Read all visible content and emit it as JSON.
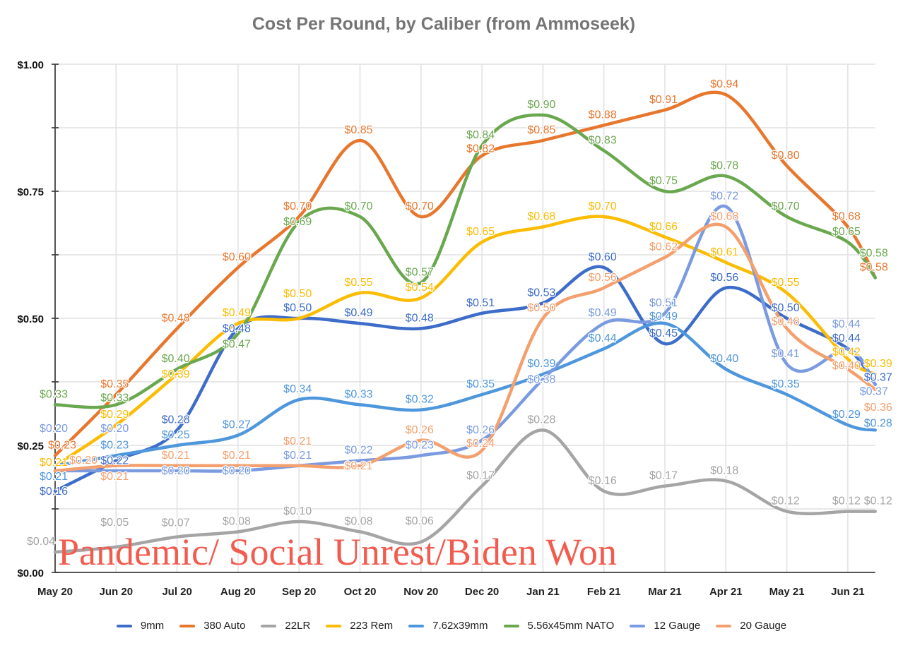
{
  "chart_data": {
    "type": "line",
    "title": "Cost Per Round, by Caliber (from Ammoseek)",
    "xlabel": "",
    "ylabel": "",
    "annotation": "Pandemic/ Social Unrest/Biden Won",
    "categories": [
      "May 20",
      "Jun 20",
      "Jul 20",
      "Aug 20",
      "Sep 20",
      "Oct 20",
      "Nov 20",
      "Dec 20",
      "Jan 21",
      "Feb 21",
      "Mar 21",
      "Apr 21",
      "May 21",
      "Jun 21"
    ],
    "x": [
      0,
      1,
      2,
      3,
      4,
      5,
      6,
      7,
      8,
      9,
      10,
      11,
      12,
      13,
      13.45
    ],
    "ylim": [
      0,
      1.0
    ],
    "yticks": [
      0,
      0.25,
      0.5,
      0.75,
      1.0
    ],
    "ytick_labels": [
      "$0.00",
      "$0.25",
      "$0.50",
      "$0.75",
      "$1.00"
    ],
    "grid": true,
    "legend_position": "bottom",
    "series": [
      {
        "name": "9mm",
        "color": "#3d6cc9",
        "values": [
          0.16,
          0.22,
          0.28,
          0.48,
          0.5,
          0.49,
          0.48,
          0.51,
          0.53,
          0.6,
          0.45,
          0.56,
          0.5,
          0.44,
          0.37
        ]
      },
      {
        "name": "380 Auto",
        "color": "#e8772e",
        "values": [
          0.23,
          0.35,
          0.48,
          0.6,
          0.7,
          0.85,
          0.7,
          0.82,
          0.85,
          0.88,
          0.91,
          0.94,
          0.8,
          0.68,
          0.58
        ]
      },
      {
        "name": "22LR",
        "color": "#a5a5a5",
        "values": [
          0.04,
          0.05,
          0.07,
          0.08,
          0.1,
          0.08,
          0.06,
          0.17,
          0.28,
          0.16,
          0.17,
          0.18,
          0.12,
          0.12,
          0.12
        ]
      },
      {
        "name": "223 Rem",
        "color": "#fbbc04",
        "values": [
          0.21,
          0.29,
          0.39,
          0.49,
          0.5,
          0.55,
          0.54,
          0.65,
          0.68,
          0.7,
          0.66,
          0.61,
          0.55,
          0.42,
          0.39
        ]
      },
      {
        "name": "7.62x39mm",
        "color": "#4f97dc",
        "values": [
          0.21,
          0.23,
          0.25,
          0.27,
          0.34,
          0.33,
          0.32,
          0.35,
          0.39,
          0.44,
          0.49,
          0.4,
          0.35,
          0.29,
          0.28
        ]
      },
      {
        "name": "5.56x45mm NATO",
        "color": "#6aa84f",
        "values": [
          0.33,
          0.33,
          0.4,
          0.47,
          0.69,
          0.7,
          0.57,
          0.84,
          0.9,
          0.83,
          0.75,
          0.78,
          0.7,
          0.65,
          0.58
        ]
      },
      {
        "name": "12 Gauge",
        "color": "#7b9be0",
        "values": [
          0.2,
          0.2,
          0.2,
          0.2,
          0.21,
          0.22,
          0.23,
          0.26,
          0.38,
          0.49,
          0.51,
          0.72,
          0.41,
          0.44,
          0.37
        ]
      },
      {
        "name": "20 Gauge",
        "color": "#f4a06e",
        "values": [
          0.2,
          0.21,
          0.21,
          0.21,
          0.21,
          0.21,
          0.26,
          0.24,
          0.5,
          0.56,
          0.62,
          0.68,
          0.48,
          0.4,
          0.36
        ]
      }
    ]
  }
}
